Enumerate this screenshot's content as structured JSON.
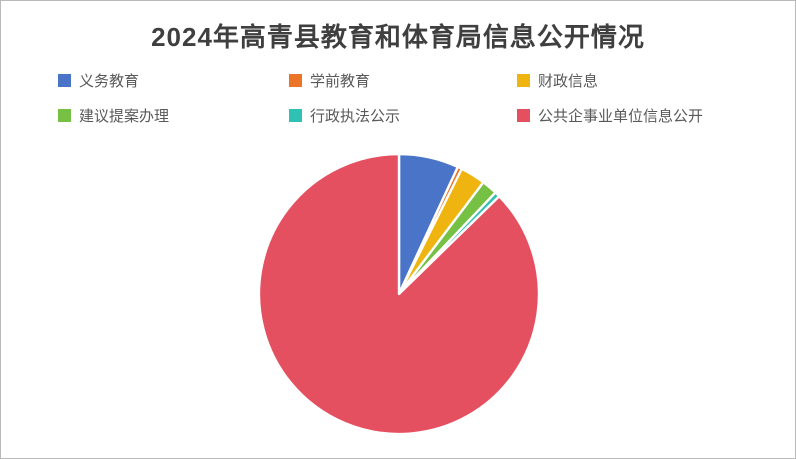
{
  "page": {
    "background": "#ffffff",
    "border_color": "#b9b9b9"
  },
  "chart_data": {
    "type": "pie",
    "title": "2024年高青县教育和体育局信息公开情况",
    "title_color": "#3f3f3f",
    "legend_position": "top",
    "legend_rows": 2,
    "legend_columns": 3,
    "legend_text_color": "#595959",
    "start_angle": "12-oclock",
    "direction": "clockwise",
    "slice_gap_color": "#ffffff",
    "labels": [
      "义务教育",
      "学前教育",
      "财政信息",
      "建议提案办理",
      "行政执法公示",
      "公共企事业单位信息公开"
    ],
    "values_percent": [
      6.9,
      0.5,
      2.9,
      1.8,
      0.6,
      87.3
    ],
    "colors": [
      "#4a74c8",
      "#ec7428",
      "#f0b410",
      "#76c043",
      "#30c0b4",
      "#e4505f"
    ]
  }
}
